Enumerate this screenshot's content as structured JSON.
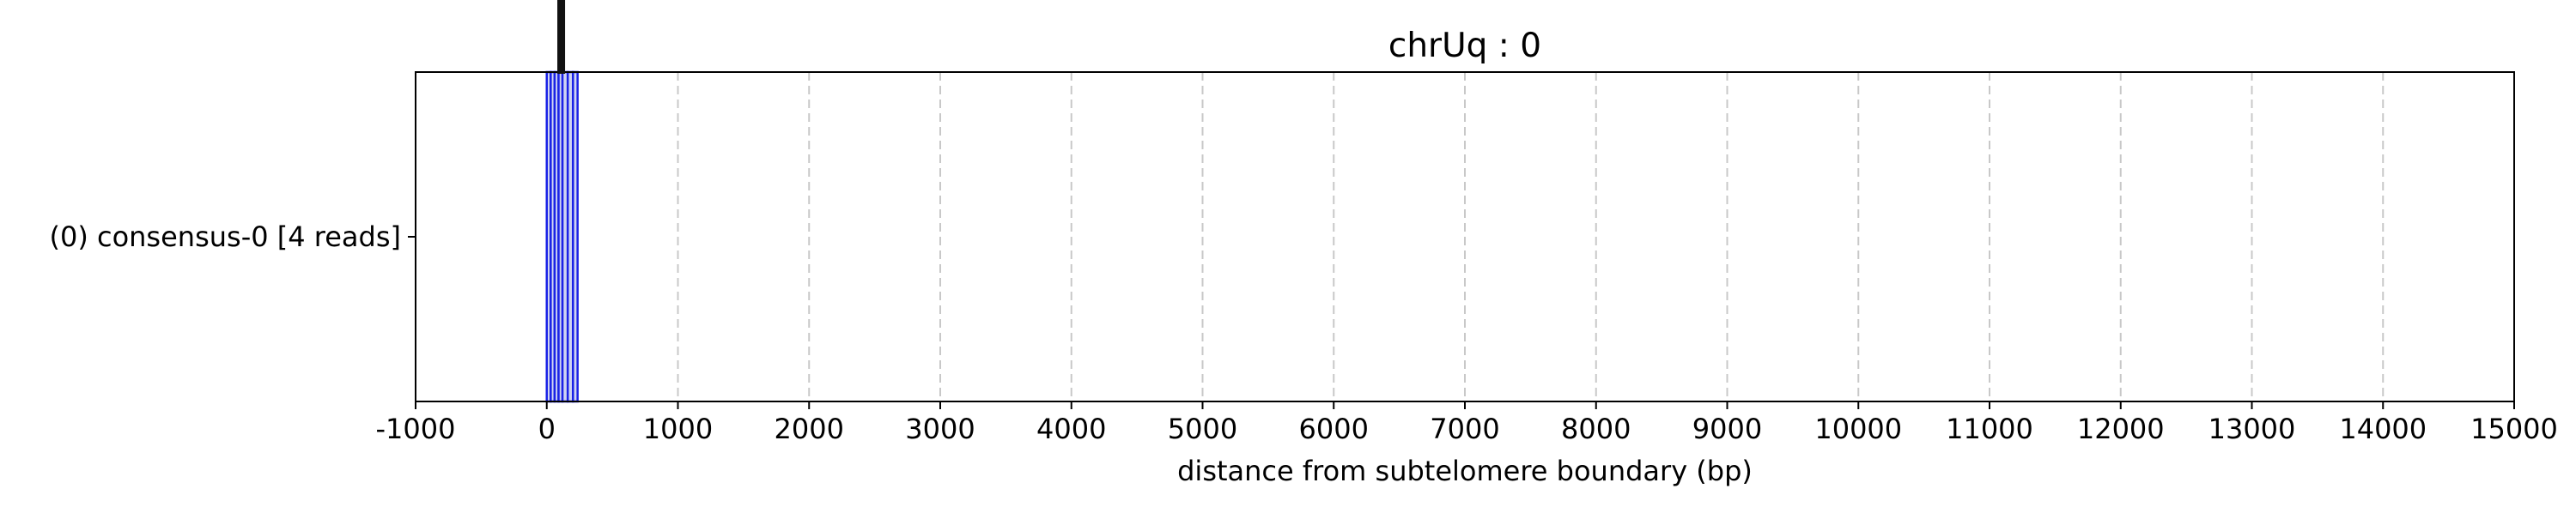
{
  "chart_data": {
    "type": "bar",
    "title": "chrUq : 0",
    "xlabel": "distance from subtelomere boundary (bp)",
    "ylabel": "",
    "xlim": [
      -1000,
      15000
    ],
    "xticks": [
      -1000,
      0,
      1000,
      2000,
      3000,
      4000,
      5000,
      6000,
      7000,
      8000,
      9000,
      10000,
      11000,
      12000,
      13000,
      14000,
      15000
    ],
    "xtick_labels": [
      "-1000",
      "0",
      "1000",
      "2000",
      "3000",
      "4000",
      "5000",
      "6000",
      "7000",
      "8000",
      "9000",
      "10000",
      "11000",
      "12000",
      "13000",
      "14000",
      "15000"
    ],
    "grid": "x-dashed",
    "categories": [
      "(0) consensus-0 [4 reads]"
    ],
    "segments": [
      {
        "start": 0,
        "end": 30
      },
      {
        "start": 30,
        "end": 60
      },
      {
        "start": 60,
        "end": 90
      },
      {
        "start": 90,
        "end": 120
      },
      {
        "start": 120,
        "end": 160
      },
      {
        "start": 160,
        "end": 200
      },
      {
        "start": 200,
        "end": 235
      }
    ],
    "boundary_marker_x": 110,
    "colors": {
      "segment_fill": "#cfd4f2",
      "segment_edge": "#1a22e6",
      "marker": "#111111",
      "grid": "#c8c8c8",
      "axes": "#000000"
    }
  }
}
